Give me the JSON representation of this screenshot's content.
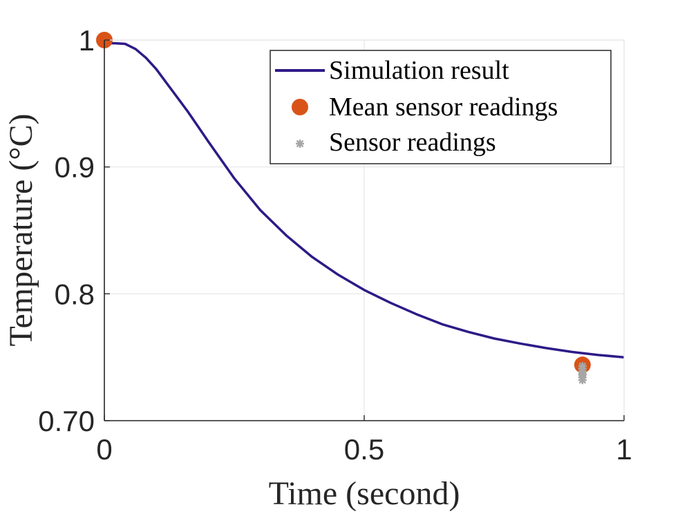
{
  "chart_data": {
    "type": "line",
    "title": "",
    "xlabel": "Time (second)",
    "ylabel": "Temperature (°C)",
    "xlim": [
      0,
      1
    ],
    "ylim": [
      0.7,
      1
    ],
    "xticks": [
      0,
      0.5,
      1
    ],
    "xtick_labels": [
      "0",
      "0.5",
      "1"
    ],
    "yticks": [
      0.7,
      0.8,
      0.9,
      1
    ],
    "ytick_labels": [
      "0.70",
      "0.8",
      "0.9",
      "1"
    ],
    "grid": true,
    "legend_position": "top-right",
    "series": [
      {
        "name": "Simulation result",
        "type": "line",
        "color": "#2e1a87",
        "x": [
          0,
          0.02,
          0.04,
          0.06,
          0.08,
          0.1,
          0.12,
          0.14,
          0.16,
          0.18,
          0.2,
          0.25,
          0.3,
          0.35,
          0.4,
          0.45,
          0.5,
          0.55,
          0.6,
          0.65,
          0.7,
          0.75,
          0.8,
          0.85,
          0.9,
          0.95,
          1.0
        ],
        "y": [
          0.9975,
          0.9975,
          0.997,
          0.993,
          0.986,
          0.977,
          0.966,
          0.955,
          0.944,
          0.932,
          0.92,
          0.891,
          0.866,
          0.846,
          0.829,
          0.815,
          0.803,
          0.793,
          0.784,
          0.776,
          0.77,
          0.7648,
          0.7608,
          0.7572,
          0.7542,
          0.7518,
          0.75
        ]
      },
      {
        "name": "Mean sensor readings",
        "type": "scatter",
        "color": "#d95319",
        "x": [
          0,
          0.92
        ],
        "y": [
          1.0,
          0.744
        ]
      },
      {
        "name": "Sensor readings",
        "type": "scatter",
        "color": "#a6a6a6",
        "x": [
          0.92,
          0.92,
          0.92,
          0.92,
          0.92,
          0.92,
          0.92
        ],
        "y": [
          0.743,
          0.741,
          0.739,
          0.737,
          0.736,
          0.734,
          0.732
        ]
      }
    ]
  }
}
